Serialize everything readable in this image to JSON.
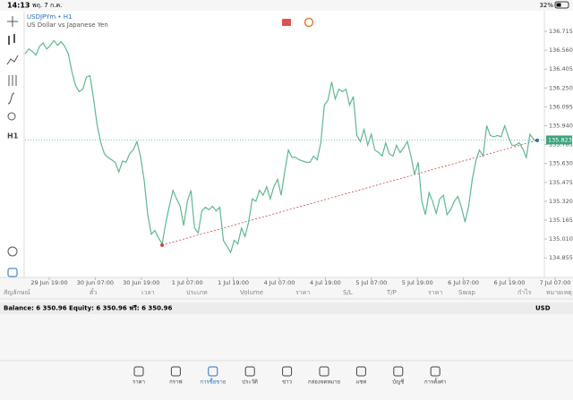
{
  "status_bar": {
    "time": "14:13",
    "date": "พฤ. 7 ก.ค.",
    "battery": "32%"
  },
  "toolbar": {
    "timeframe": "H1"
  },
  "chart_data": {
    "type": "line",
    "title": "USDJPYm • H1",
    "subtitle": "US Dollar vs Japanese Yen",
    "xticks": [
      "29 Jun 19:00",
      "30 Jun 07:00",
      "30 Jun 19:00",
      "1 Jul 07:00",
      "1 Jul 19:00",
      "4 Jul 07:00",
      "4 Jul 19:00",
      "5 Jul 07:00",
      "5 Jul 19:00",
      "6 Jul 07:00",
      "6 Jul 19:00",
      "7 Jul 07:00"
    ],
    "ylim": [
      134.717,
      136.862
    ],
    "yticks": [
      136.715,
      {
        "value": 136.56,
        "label": "136.560"
      },
      136.405,
      {
        "value": 136.25,
        "label": "136.250"
      },
      136.095,
      {
        "value": 135.94,
        "label": "135.940"
      },
      135.785,
      {
        "value": 135.63,
        "label": "135.630"
      },
      135.475,
      {
        "value": 135.32,
        "label": "135.320"
      },
      135.165,
      {
        "value": 135.01,
        "label": "135.010"
      },
      134.855
    ],
    "current_price": 135.823,
    "trendline": [
      134.96,
      135.82
    ],
    "series": [
      {
        "name": "USDJPYm",
        "color": "#5fb88f",
        "values": [
          136.53,
          136.57,
          136.55,
          136.52,
          136.59,
          136.62,
          136.57,
          136.6,
          136.64,
          136.6,
          136.63,
          136.59,
          136.53,
          136.38,
          136.27,
          136.22,
          136.24,
          136.34,
          136.35,
          136.16,
          135.94,
          135.8,
          135.71,
          135.68,
          135.66,
          135.64,
          135.56,
          135.65,
          135.64,
          135.71,
          135.74,
          135.81,
          135.69,
          135.5,
          135.21,
          135.05,
          135.08,
          135.02,
          134.97,
          135.14,
          135.28,
          135.41,
          135.34,
          135.28,
          135.12,
          135.32,
          135.41,
          135.1,
          135.06,
          135.24,
          135.27,
          135.25,
          135.28,
          135.24,
          135.27,
          135.0,
          134.95,
          134.9,
          135.0,
          134.97,
          135.1,
          135.03,
          135.15,
          135.34,
          135.32,
          135.41,
          135.37,
          135.44,
          135.34,
          135.44,
          135.5,
          135.37,
          135.56,
          135.74,
          135.68,
          135.68,
          135.66,
          135.65,
          135.64,
          135.64,
          135.69,
          135.66,
          135.8,
          136.11,
          136.15,
          136.3,
          136.16,
          136.24,
          136.22,
          136.24,
          136.11,
          136.18,
          135.86,
          135.81,
          135.91,
          135.78,
          135.87,
          135.74,
          135.72,
          135.69,
          135.8,
          135.71,
          135.69,
          135.78,
          135.72,
          135.76,
          135.81,
          135.69,
          135.54,
          135.64,
          135.32,
          135.21,
          135.39,
          135.32,
          135.22,
          135.34,
          135.37,
          135.21,
          135.25,
          135.32,
          135.36,
          135.27,
          135.15,
          135.28,
          135.5,
          135.65,
          135.74,
          135.69,
          135.94,
          135.86,
          135.85,
          135.86,
          135.85,
          135.94,
          135.85,
          135.78,
          135.78,
          135.8,
          135.75,
          135.68,
          135.87,
          135.83,
          135.81
        ]
      }
    ]
  },
  "table": {
    "headers": [
      "สัญลักษณ์",
      "ตั๋ว",
      "เวลา",
      "ประเภท",
      "Volume",
      "ราคา",
      "S/L",
      "T/P",
      "ราคา",
      "Swap",
      "กำไร",
      "หมายเหตุ"
    ],
    "balance": "Balance: 6 350.96 Equity: 6 350.96 ฟรี: 6 350.96",
    "currency": "USD"
  },
  "tabs": [
    "ราคา",
    "กราฟ",
    "การซื้อขาย",
    "ประวัติ",
    "ข่าว",
    "กล่องจดหมาย",
    "แชท",
    "บัญชี",
    "การตั้งค่า"
  ]
}
